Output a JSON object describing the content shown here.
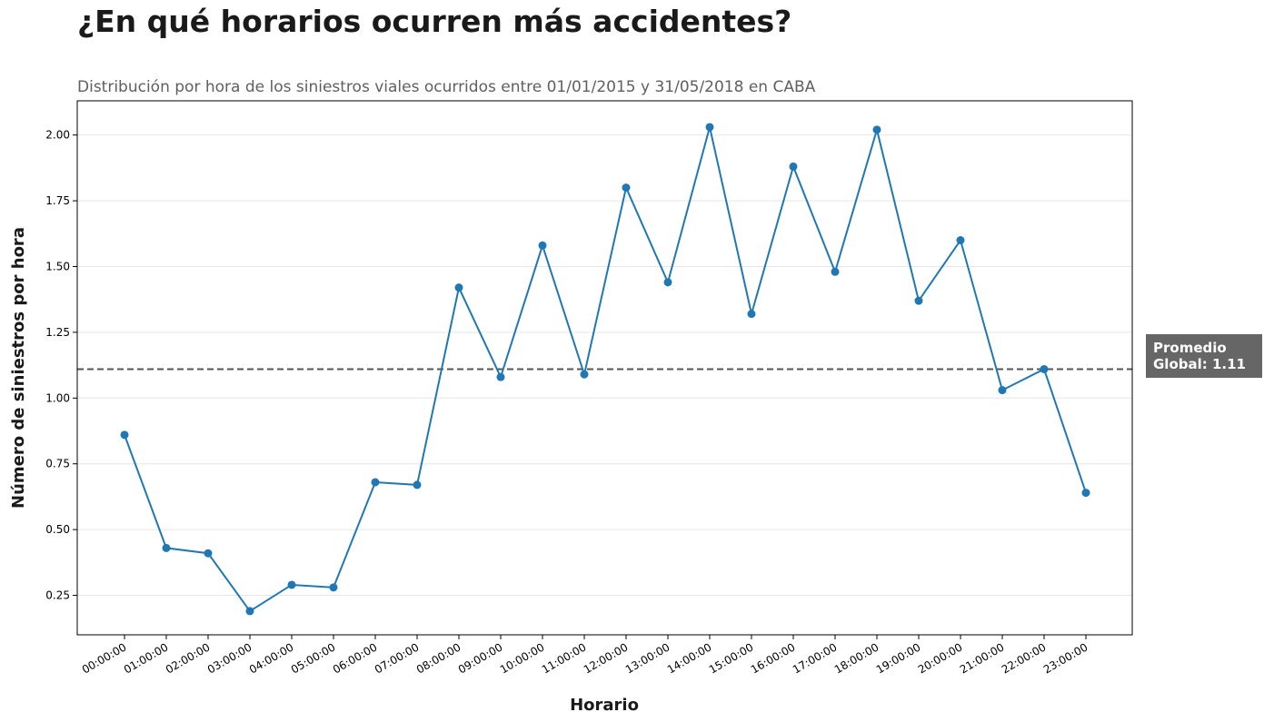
{
  "header": {
    "title": "¿En qué horarios ocurren más accidentes?",
    "subtitle": "Distribución por hora de los siniestros viales ocurridos entre 01/01/2015 y 31/05/2018 en CABA"
  },
  "chart_data": {
    "type": "line",
    "xlabel": "Horario",
    "ylabel": "Número de siniestros por hora",
    "categories": [
      "00:00:00",
      "01:00:00",
      "02:00:00",
      "03:00:00",
      "04:00:00",
      "05:00:00",
      "06:00:00",
      "07:00:00",
      "08:00:00",
      "09:00:00",
      "10:00:00",
      "11:00:00",
      "12:00:00",
      "13:00:00",
      "14:00:00",
      "15:00:00",
      "16:00:00",
      "17:00:00",
      "18:00:00",
      "19:00:00",
      "20:00:00",
      "21:00:00",
      "22:00:00",
      "23:00:00"
    ],
    "values": [
      0.86,
      0.43,
      0.41,
      0.19,
      0.29,
      0.28,
      0.68,
      0.67,
      1.42,
      1.08,
      1.58,
      1.09,
      1.8,
      1.44,
      2.03,
      1.32,
      1.88,
      1.48,
      2.02,
      1.37,
      1.6,
      1.03,
      1.11,
      0.64
    ],
    "ylim": [
      0.1,
      2.13
    ],
    "yticks": [
      "0.25",
      "0.50",
      "0.75",
      "1.00",
      "1.25",
      "1.50",
      "1.75",
      "2.00"
    ],
    "grid": "horizontal",
    "reference_line": {
      "value": 1.11,
      "label_line1": "Promedio",
      "label_line2": "Global: 1.11"
    },
    "colors": {
      "line": "#1f77b4",
      "reference": "#555555",
      "label_box": "#666666",
      "grid": "#e6e6e6"
    }
  }
}
